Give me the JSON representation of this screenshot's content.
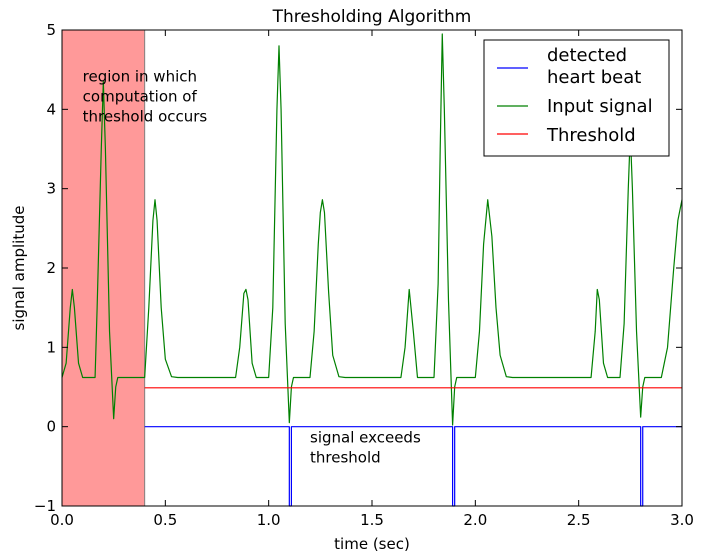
{
  "chart_data": {
    "type": "line",
    "title": "Thresholding Algorithm",
    "xlabel": "time (sec)",
    "ylabel": "signal amplitude",
    "xlim": [
      0.0,
      3.0
    ],
    "ylim": [
      -1,
      5
    ],
    "x_ticks": [
      "0.0",
      "0.5",
      "1.0",
      "1.5",
      "2.0",
      "2.5",
      "3.0"
    ],
    "y_ticks": [
      "−1",
      "0",
      "1",
      "2",
      "3",
      "4",
      "5"
    ],
    "grid": false,
    "legend_position": "top-right",
    "series": [
      {
        "name": "detected heart beat",
        "color": "#0000ff",
        "points": [
          [
            0.4,
            0.0
          ],
          [
            1.1,
            0.0
          ],
          [
            1.1,
            -1.0
          ],
          [
            1.11,
            -1.0
          ],
          [
            1.11,
            0.0
          ],
          [
            1.89,
            0.0
          ],
          [
            1.89,
            -1.0
          ],
          [
            1.9,
            -1.0
          ],
          [
            1.9,
            0.0
          ],
          [
            2.8,
            0.0
          ],
          [
            2.8,
            -1.0
          ],
          [
            2.81,
            -1.0
          ],
          [
            2.81,
            0.0
          ],
          [
            3.0,
            0.0
          ]
        ]
      },
      {
        "name": "Input signal",
        "color": "#008000",
        "points": [
          [
            0.0,
            0.62
          ],
          [
            0.02,
            0.8
          ],
          [
            0.04,
            1.5
          ],
          [
            0.05,
            1.73
          ],
          [
            0.06,
            1.5
          ],
          [
            0.08,
            0.8
          ],
          [
            0.1,
            0.62
          ],
          [
            0.16,
            0.62
          ],
          [
            0.17,
            1.5
          ],
          [
            0.19,
            3.5
          ],
          [
            0.2,
            4.35
          ],
          [
            0.21,
            3.5
          ],
          [
            0.23,
            1.2
          ],
          [
            0.25,
            0.1
          ],
          [
            0.26,
            0.5
          ],
          [
            0.27,
            0.62
          ],
          [
            0.4,
            0.62
          ],
          [
            0.42,
            1.5
          ],
          [
            0.44,
            2.6
          ],
          [
            0.45,
            2.86
          ],
          [
            0.46,
            2.6
          ],
          [
            0.48,
            1.5
          ],
          [
            0.5,
            0.85
          ],
          [
            0.53,
            0.63
          ],
          [
            0.56,
            0.62
          ],
          [
            0.84,
            0.62
          ],
          [
            0.86,
            1.0
          ],
          [
            0.88,
            1.68
          ],
          [
            0.89,
            1.73
          ],
          [
            0.9,
            1.6
          ],
          [
            0.92,
            0.8
          ],
          [
            0.94,
            0.62
          ],
          [
            1.0,
            0.62
          ],
          [
            1.02,
            1.5
          ],
          [
            1.04,
            4.0
          ],
          [
            1.05,
            4.8
          ],
          [
            1.06,
            4.0
          ],
          [
            1.08,
            1.3
          ],
          [
            1.1,
            0.05
          ],
          [
            1.11,
            0.5
          ],
          [
            1.12,
            0.62
          ],
          [
            1.2,
            0.62
          ],
          [
            1.22,
            1.2
          ],
          [
            1.24,
            2.3
          ],
          [
            1.25,
            2.7
          ],
          [
            1.26,
            2.86
          ],
          [
            1.27,
            2.7
          ],
          [
            1.29,
            1.7
          ],
          [
            1.31,
            0.9
          ],
          [
            1.34,
            0.63
          ],
          [
            1.37,
            0.62
          ],
          [
            1.64,
            0.62
          ],
          [
            1.66,
            1.0
          ],
          [
            1.68,
            1.73
          ],
          [
            1.7,
            1.2
          ],
          [
            1.72,
            0.62
          ],
          [
            1.8,
            0.62
          ],
          [
            1.82,
            1.8
          ],
          [
            1.83,
            3.5
          ],
          [
            1.84,
            4.95
          ],
          [
            1.85,
            4.0
          ],
          [
            1.87,
            1.6
          ],
          [
            1.89,
            0.02
          ],
          [
            1.9,
            0.5
          ],
          [
            1.91,
            0.62
          ],
          [
            2.0,
            0.62
          ],
          [
            2.02,
            1.2
          ],
          [
            2.04,
            2.3
          ],
          [
            2.06,
            2.86
          ],
          [
            2.08,
            2.4
          ],
          [
            2.1,
            1.5
          ],
          [
            2.12,
            0.9
          ],
          [
            2.15,
            0.63
          ],
          [
            2.18,
            0.62
          ],
          [
            2.56,
            0.62
          ],
          [
            2.58,
            1.2
          ],
          [
            2.59,
            1.73
          ],
          [
            2.6,
            1.6
          ],
          [
            2.62,
            0.8
          ],
          [
            2.64,
            0.62
          ],
          [
            2.7,
            0.62
          ],
          [
            2.72,
            1.3
          ],
          [
            2.74,
            3.0
          ],
          [
            2.75,
            3.7
          ],
          [
            2.76,
            3.0
          ],
          [
            2.78,
            1.2
          ],
          [
            2.8,
            0.12
          ],
          [
            2.81,
            0.5
          ],
          [
            2.82,
            0.62
          ],
          [
            2.9,
            0.62
          ],
          [
            2.93,
            1.0
          ],
          [
            2.96,
            2.0
          ],
          [
            2.98,
            2.6
          ],
          [
            3.0,
            2.86
          ]
        ]
      },
      {
        "name": "Threshold",
        "color": "#ff0000",
        "points": [
          [
            0.4,
            0.49
          ],
          [
            3.0,
            0.49
          ]
        ]
      }
    ],
    "shaded_region": {
      "x_start": 0.0,
      "x_end": 0.4,
      "color": "#ff9999"
    },
    "annotations": [
      {
        "lines": [
          "region in which",
          "computation of",
          "threshold occurs"
        ],
        "x": 0.1,
        "y": 4.35
      },
      {
        "lines": [
          "signal exceeds",
          "threshold"
        ],
        "x": 1.2,
        "y": -0.2
      }
    ]
  }
}
